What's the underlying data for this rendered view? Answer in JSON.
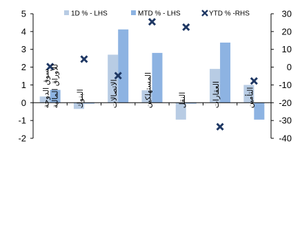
{
  "chart_data": {
    "type": "bar",
    "categories": [
      "سوق الدوحة للأوراق المالية",
      "البنوك",
      "الاتصالات",
      "المستهلكين",
      "النقل",
      "العقارات",
      "التأمين"
    ],
    "series": [
      {
        "name": "1D % - LHS",
        "kind": "bar",
        "axis": "left",
        "color": "#b8cce4",
        "values": [
          0.35,
          -0.35,
          2.7,
          0.7,
          -0.95,
          1.9,
          1.0
        ]
      },
      {
        "name": "MTD % - LHS",
        "kind": "bar",
        "axis": "left",
        "color": "#8db3e2",
        "values": [
          0.72,
          -0.05,
          4.12,
          2.8,
          -0.05,
          3.38,
          -0.95
        ]
      },
      {
        "name": "YTD % -RHS",
        "kind": "scatter",
        "axis": "right",
        "color": "#1f3864",
        "marker": "x",
        "values": [
          0.3,
          4.5,
          -4.8,
          25.5,
          22.5,
          -33.5,
          -7.8
        ]
      }
    ],
    "y_left": {
      "range": [
        -2,
        5
      ],
      "ticks": [
        "5",
        "4",
        "3",
        "2",
        "1",
        "0",
        "-1",
        "-2"
      ]
    },
    "y_right": {
      "range": [
        -40,
        30
      ],
      "ticks": [
        "30",
        "20",
        "10",
        "0",
        "-10",
        "-20",
        "-30",
        "-40"
      ]
    },
    "legend": "top",
    "grid": false
  }
}
